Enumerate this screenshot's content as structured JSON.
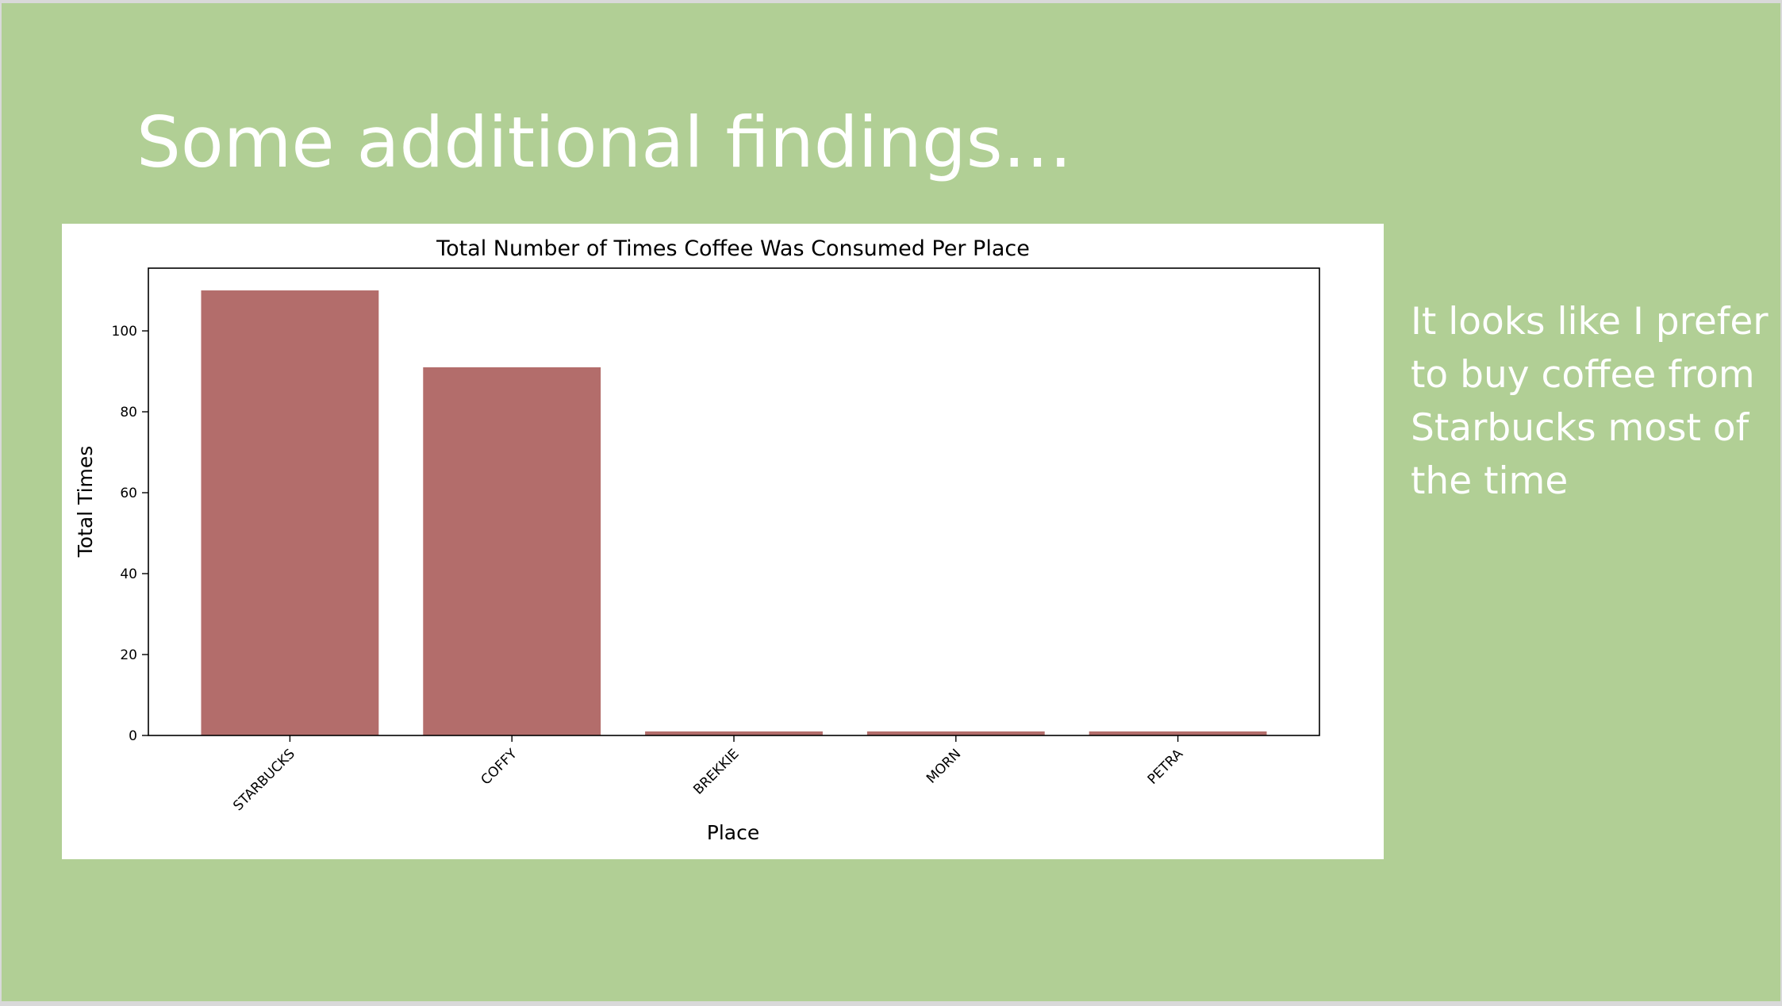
{
  "slide": {
    "title": "Some additional findings…",
    "note": "It looks like I prefer to buy coffee from Starbucks most of the time"
  },
  "chart_data": {
    "type": "bar",
    "title": "Total Number of Times Coffee Was Consumed Per Place",
    "xlabel": "Place",
    "ylabel": "Total Times",
    "categories": [
      "STARBUCKS",
      "COFFY",
      "BREKKIE",
      "MORN",
      "PETRA"
    ],
    "values": [
      110,
      91,
      1,
      1,
      1
    ],
    "ylim": [
      0,
      115.5
    ],
    "yticks": [
      0,
      20,
      40,
      60,
      80,
      100
    ],
    "bar_color": "#b36d6b",
    "grid": false,
    "legend": "none"
  }
}
